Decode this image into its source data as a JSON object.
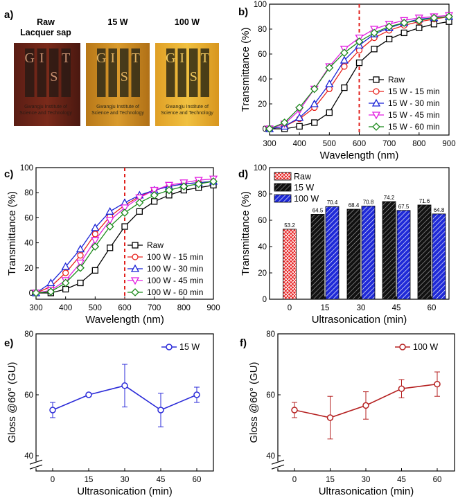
{
  "figure": {
    "panel_a": {
      "label": "a)",
      "samples": [
        {
          "title": "Raw",
          "subtitle": "Lacquer sap",
          "logo_letters": [
            "G",
            "I",
            "S",
            "T"
          ],
          "caption_lines": [
            "Gwangju Institute of",
            "Science and Technology"
          ]
        },
        {
          "title": "15 W",
          "subtitle": "",
          "logo_letters": [
            "G",
            "I",
            "S",
            "T"
          ],
          "caption_lines": [
            "Gwangju Institute of",
            "Science and Technology"
          ]
        },
        {
          "title": "100 W",
          "subtitle": "",
          "logo_letters": [
            "G",
            "I",
            "S",
            "T"
          ],
          "caption_lines": [
            "Gwangju Institute of",
            "Science and Technology"
          ]
        }
      ]
    }
  },
  "colors": {
    "raw": "#000000",
    "t15": "#e8231d",
    "t30": "#1a23d6",
    "t45": "#e21ee0",
    "t60": "#1b8a1b",
    "bar_raw": "#e82020",
    "bar_15w": "#111111",
    "bar_100w": "#1f2ad8",
    "gloss_15w": "#2a2ad8",
    "gloss_100w": "#b52020",
    "cutoff_line": "#e0201c"
  },
  "chart_data": [
    {
      "panel": "b)",
      "type": "line",
      "xlabel": "Wavelength (nm)",
      "ylabel": "Transmittance (%)",
      "xlim": [
        300,
        900
      ],
      "ylim": [
        -5,
        100
      ],
      "xticks": [
        300,
        400,
        500,
        600,
        700,
        800,
        900
      ],
      "yticks": [
        0,
        20,
        40,
        60,
        80,
        100
      ],
      "vline": 600,
      "legend_position": "bottom-right",
      "x": [
        300,
        350,
        400,
        450,
        500,
        550,
        600,
        650,
        700,
        750,
        800,
        850,
        900
      ],
      "series": [
        {
          "name": "Raw",
          "color_key": "raw",
          "marker": "square",
          "values": [
            0,
            0,
            2,
            5,
            13,
            33,
            53,
            64,
            72,
            77,
            81,
            84,
            86
          ]
        },
        {
          "name": "15 W - 15 min",
          "color_key": "t15",
          "marker": "circle",
          "values": [
            0,
            2,
            8,
            17,
            32,
            50,
            63,
            73,
            79,
            83,
            86,
            88,
            90
          ]
        },
        {
          "name": "15 W - 30 min",
          "color_key": "t30",
          "marker": "triangle-up",
          "values": [
            0,
            2,
            9,
            20,
            36,
            55,
            67,
            76,
            81,
            85,
            88,
            89,
            90
          ]
        },
        {
          "name": "15 W - 45 min",
          "color_key": "t45",
          "marker": "triangle-down",
          "values": [
            0,
            4,
            15,
            32,
            50,
            64,
            73,
            80,
            84,
            87,
            89,
            90,
            91
          ]
        },
        {
          "name": "15 W - 60 min",
          "color_key": "t60",
          "marker": "diamond",
          "values": [
            0,
            5,
            17,
            32,
            49,
            61,
            70,
            77,
            82,
            85,
            87,
            89,
            90
          ]
        }
      ]
    },
    {
      "panel": "c)",
      "type": "line",
      "xlabel": "Wavelength (nm)",
      "ylabel": "Transmittance (%)",
      "xlim": [
        300,
        900
      ],
      "ylim": [
        -5,
        100
      ],
      "xticks": [
        300,
        400,
        500,
        600,
        700,
        800,
        900
      ],
      "yticks": [
        0,
        20,
        40,
        60,
        80,
        100
      ],
      "vline": 600,
      "legend_position": "bottom-right",
      "x": [
        300,
        350,
        400,
        450,
        500,
        550,
        600,
        650,
        700,
        750,
        800,
        850,
        900
      ],
      "series": [
        {
          "name": "Raw",
          "color_key": "raw",
          "marker": "square",
          "values": [
            0,
            0,
            3,
            8,
            18,
            36,
            53,
            65,
            73,
            78,
            82,
            84,
            86
          ]
        },
        {
          "name": "100 W - 15 min",
          "color_key": "t15",
          "marker": "circle",
          "values": [
            0,
            5,
            16,
            30,
            47,
            61,
            70,
            77,
            82,
            85,
            87,
            88,
            89
          ]
        },
        {
          "name": "100 W - 30 min",
          "color_key": "t30",
          "marker": "triangle-up",
          "values": [
            0,
            8,
            21,
            35,
            52,
            65,
            72,
            78,
            82,
            85,
            87,
            88,
            89
          ]
        },
        {
          "name": "100 W - 45 min",
          "color_key": "t45",
          "marker": "triangle-down",
          "values": [
            0,
            2,
            10,
            24,
            42,
            58,
            68,
            76,
            82,
            86,
            88,
            90,
            91
          ]
        },
        {
          "name": "100 W - 60 min",
          "color_key": "t60",
          "marker": "diamond",
          "values": [
            0,
            1,
            8,
            20,
            37,
            53,
            64,
            72,
            78,
            82,
            85,
            87,
            89
          ]
        }
      ]
    },
    {
      "panel": "d)",
      "type": "bar",
      "xlabel": "Ultrasonication (min)",
      "ylabel": "Transmittance (%)",
      "ylim": [
        0,
        100
      ],
      "yticks": [
        0,
        20,
        40,
        60,
        80,
        100
      ],
      "categories": [
        "0",
        "15",
        "30",
        "45",
        "60"
      ],
      "legend_position": "top-left",
      "series": [
        {
          "name": "Raw",
          "color_key": "bar_raw",
          "pattern": "crosshatch",
          "values": [
            53.2,
            null,
            null,
            null,
            null
          ],
          "labels": [
            "53.2",
            "",
            "",
            "",
            ""
          ]
        },
        {
          "name": "15 W",
          "color_key": "bar_15w",
          "pattern": "diagonal",
          "values": [
            null,
            64.5,
            68.4,
            74.2,
            71.6
          ],
          "labels": [
            "",
            "64.5",
            "68.4",
            "74.2",
            "71.6"
          ]
        },
        {
          "name": "100 W",
          "color_key": "bar_100w",
          "pattern": "diagonal",
          "values": [
            null,
            70.4,
            70.8,
            67.5,
            64.8
          ],
          "labels": [
            "",
            "70.4",
            "70.8",
            "67.5",
            "64.8"
          ]
        }
      ]
    },
    {
      "panel": "e)",
      "type": "line",
      "xlabel": "Ultrasonication (min)",
      "ylabel": "Gloss @60° (GU)",
      "ylim": [
        35,
        80
      ],
      "yticks": [
        40,
        60,
        80
      ],
      "axis_break": true,
      "categories": [
        "0",
        "15",
        "30",
        "45",
        "60"
      ],
      "legend_position": "top-right",
      "series": [
        {
          "name": "15 W",
          "color_key": "gloss_15w",
          "marker": "circle",
          "values": [
            55,
            60,
            63,
            55,
            60
          ],
          "errors": [
            2.5,
            0.5,
            7,
            5.5,
            2.5
          ]
        }
      ]
    },
    {
      "panel": "f)",
      "type": "line",
      "xlabel": "Ultrasonication (min)",
      "ylabel": "Gloss @60° (GU)",
      "ylim": [
        35,
        80
      ],
      "yticks": [
        40,
        60,
        80
      ],
      "axis_break": true,
      "categories": [
        "0",
        "15",
        "30",
        "45",
        "60"
      ],
      "legend_position": "top-right",
      "series": [
        {
          "name": "100 W",
          "color_key": "gloss_100w",
          "marker": "circle",
          "values": [
            55,
            52.5,
            56.5,
            62,
            63.5
          ],
          "errors": [
            2.5,
            7,
            4.5,
            3,
            4
          ]
        }
      ]
    }
  ]
}
